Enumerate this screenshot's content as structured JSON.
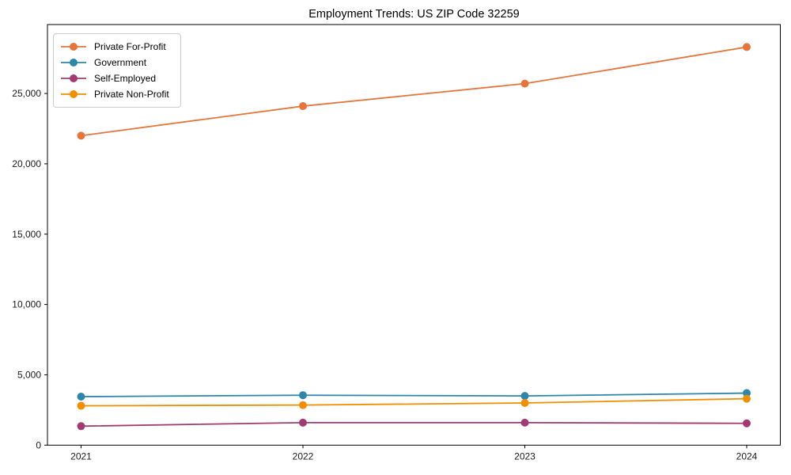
{
  "chart_data": {
    "type": "line",
    "title": "Employment Trends: US ZIP Code 32259",
    "xlabel": "",
    "ylabel": "",
    "x": [
      2021,
      2022,
      2023,
      2024
    ],
    "xtick_labels": [
      "2021",
      "2022",
      "2023",
      "2024"
    ],
    "yticks": [
      0,
      5000,
      10000,
      15000,
      20000,
      25000
    ],
    "ytick_labels": [
      "0",
      "5,000",
      "10,000",
      "15,000",
      "20,000",
      "25,000"
    ],
    "ylim": [
      0,
      29900
    ],
    "grid": false,
    "legend_position": "upper left",
    "marker": "circle",
    "series": [
      {
        "name": "Private For-Profit",
        "color": "#E8743B",
        "values": [
          22000,
          24100,
          25700,
          28300
        ]
      },
      {
        "name": "Government",
        "color": "#2E86AB",
        "values": [
          3450,
          3550,
          3500,
          3700
        ]
      },
      {
        "name": "Self-Employed",
        "color": "#A23B72",
        "values": [
          1350,
          1600,
          1600,
          1550
        ]
      },
      {
        "name": "Private Non-Profit",
        "color": "#F18F01",
        "values": [
          2800,
          2850,
          3000,
          3300
        ]
      }
    ],
    "colors": {
      "axes": "#000000",
      "tick_label": "#1a1a1a",
      "background": "#ffffff",
      "legend_border": "#cccccc"
    }
  }
}
